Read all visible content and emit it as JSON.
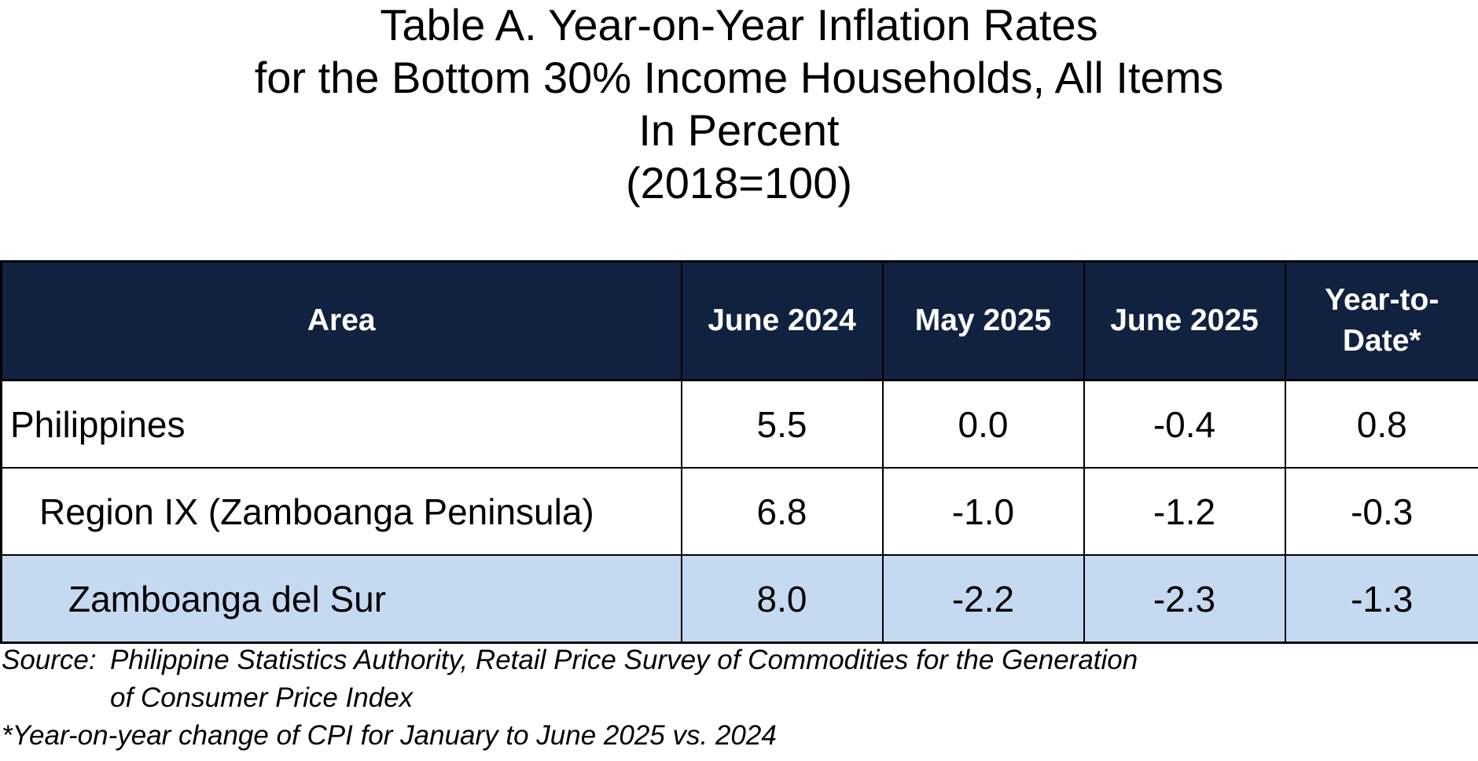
{
  "title": {
    "line1": "Table A.  Year-on-Year Inflation Rates",
    "line2": "for the Bottom 30% Income Households, All Items",
    "line3": "In Percent",
    "line4": "(2018=100)"
  },
  "table": {
    "headers": [
      "Area",
      "June 2024",
      "May 2025",
      "June 2025",
      "Year-to-Date*"
    ],
    "header_ytd_line1": "Year-to-",
    "header_ytd_line2": "Date*",
    "rows": [
      {
        "area": "Philippines",
        "level": 0,
        "values": [
          "5.5",
          "0.0",
          "-0.4",
          "0.8"
        ]
      },
      {
        "area": "Region IX (Zamboanga Peninsula)",
        "level": 1,
        "values": [
          "6.8",
          "-1.0",
          "-1.2",
          "-0.3"
        ]
      },
      {
        "area": "Zamboanga del Sur",
        "level": 2,
        "values": [
          "8.0",
          "-2.2",
          "-2.3",
          "-1.3"
        ],
        "highlighted": true
      }
    ]
  },
  "notes": {
    "source_label": "Source:",
    "source_line1": "Philippine Statistics Authority, Retail Price Survey of Commodities for the Generation",
    "source_line2": "of Consumer Price Index",
    "footnote": "*Year-on-year change of CPI for January to June 2025 vs. 2024"
  },
  "colors": {
    "header_background": "#10223f",
    "header_text": "#ffffff",
    "highlight_row": "#c5daf0"
  }
}
